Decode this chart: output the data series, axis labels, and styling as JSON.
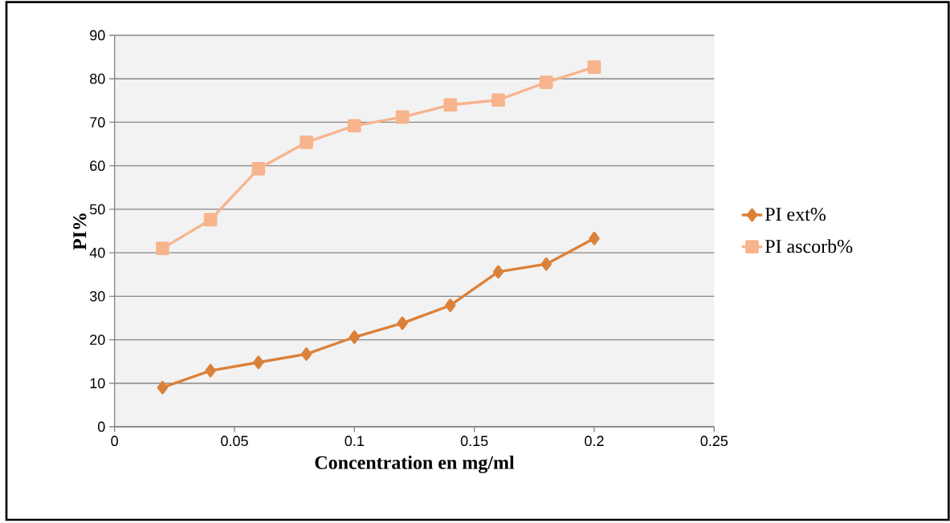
{
  "chart_data": {
    "type": "line",
    "xlabel": "Concentration en mg/ml",
    "ylabel": "PI%",
    "x": [
      0.02,
      0.04,
      0.06,
      0.08,
      0.1,
      0.12,
      0.14,
      0.16,
      0.18,
      0.2
    ],
    "series": [
      {
        "name": "PI ext%",
        "color": "#dc8139",
        "marker": "diamond",
        "values": [
          9.0,
          12.9,
          14.8,
          16.7,
          20.6,
          23.8,
          27.9,
          35.6,
          37.4,
          43.3
        ]
      },
      {
        "name": "PI  ascorb%",
        "color": "#f7b48d",
        "marker": "square",
        "values": [
          41.0,
          47.6,
          59.3,
          65.4,
          69.2,
          71.2,
          74.0,
          75.1,
          79.2,
          82.7
        ]
      }
    ],
    "xlim": [
      0,
      0.25
    ],
    "xticks": [
      0,
      0.05,
      0.1,
      0.15,
      0.2,
      0.25
    ],
    "ylim": [
      0,
      90
    ],
    "yticks": [
      0,
      10,
      20,
      30,
      40,
      50,
      60,
      70,
      80,
      90
    ],
    "grid": "y",
    "legend": "right",
    "line_style": "solid"
  }
}
